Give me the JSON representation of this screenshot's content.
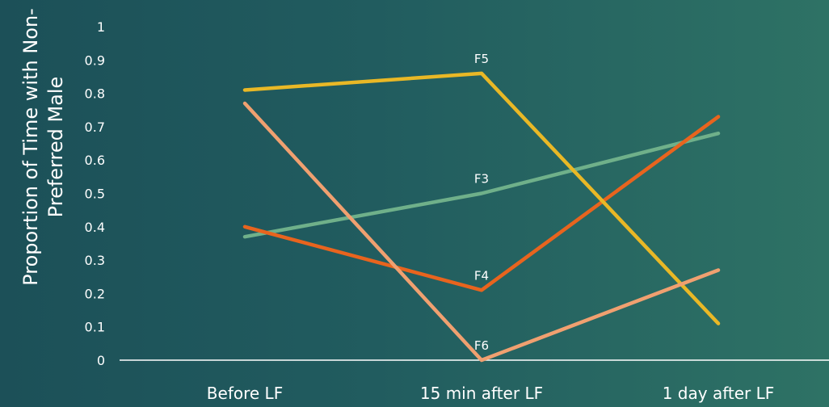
{
  "chart_data": {
    "type": "line",
    "title": "",
    "xlabel": "",
    "ylabel": "Proportion of Time with Non-Preferred Male",
    "ylabel_lines": [
      "Proportion of Time with Non-",
      "Preferred Male"
    ],
    "categories": [
      "Before LF",
      "15 min after LF",
      "1 day after LF"
    ],
    "ylim": [
      0,
      1
    ],
    "yticks": [
      "0",
      "0.1",
      "0.2",
      "0.3",
      "0.4",
      "0.5",
      "0.6",
      "0.7",
      "0.8",
      "0.9",
      "1"
    ],
    "grid": false,
    "legend": "none",
    "series": [
      {
        "name": "F3",
        "values": [
          0.37,
          0.5,
          0.68
        ],
        "color": "#6fb08a",
        "label_point": 1
      },
      {
        "name": "F4",
        "values": [
          0.4,
          0.21,
          0.73
        ],
        "color": "#e8641e",
        "label_point": 1
      },
      {
        "name": "F5",
        "values": [
          0.81,
          0.86,
          0.11
        ],
        "color": "#e9b826",
        "label_point": 1
      },
      {
        "name": "F6",
        "values": [
          0.77,
          0.0,
          0.27
        ],
        "color": "#f0a070",
        "label_point": 1
      }
    ]
  }
}
